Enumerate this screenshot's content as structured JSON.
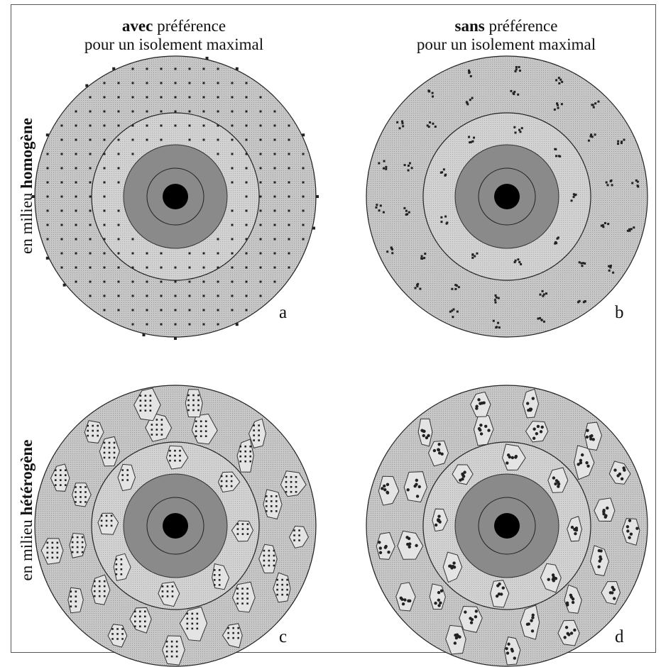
{
  "columns": [
    {
      "bold": "avec",
      "rest": " préférence",
      "line2": "pour un isolement maximal"
    },
    {
      "bold": "sans",
      "rest": " préférence",
      "line2": "pour un isolement maximal"
    }
  ],
  "rows": [
    {
      "prefix": "en milieu ",
      "bold": "homogène"
    },
    {
      "prefix": "en milieu ",
      "bold": "hétérogène"
    }
  ],
  "panels": [
    {
      "letter": "a",
      "layout": "grid"
    },
    {
      "letter": "b",
      "layout": "clusters"
    },
    {
      "letter": "c",
      "layout": "patches-grid"
    },
    {
      "letter": "d",
      "layout": "patches-clusters"
    }
  ],
  "colors": {
    "outer_disc": "#c7c7c7",
    "inner_disc": "#d2d2d2",
    "core_disc": "#8a8a8a",
    "center_dot": "#000000",
    "patch_fill": "#e4e4e4",
    "dot": "#222222"
  }
}
